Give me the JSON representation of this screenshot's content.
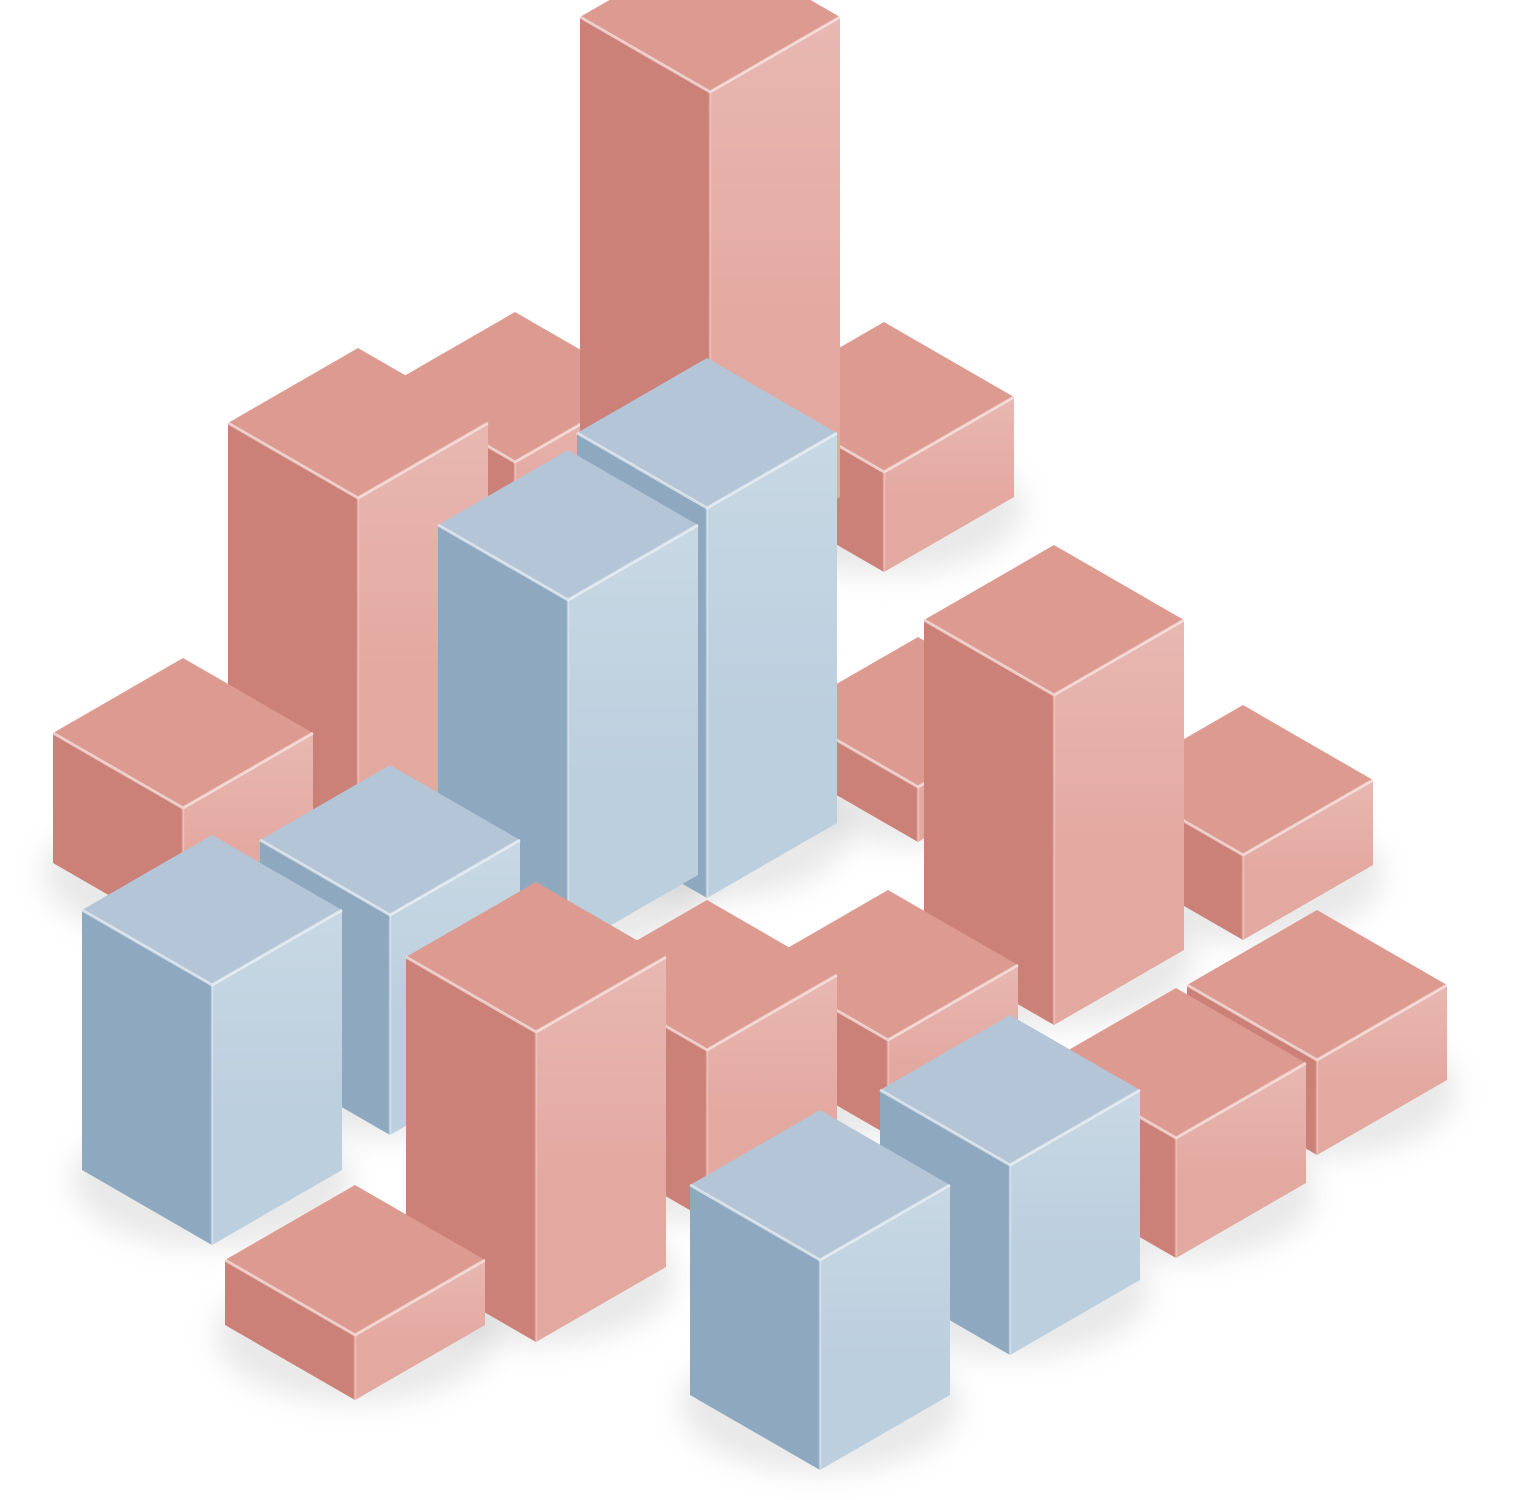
{
  "scene": {
    "subject": "3d-isometric-bar-blocks",
    "colors": {
      "red": {
        "top": "#dd9a90",
        "left": "#cb8178",
        "right": "#e3a8a0",
        "edge": "#f4cfc9"
      },
      "blue": {
        "top": "#b3c5d6",
        "left": "#8ea8c0",
        "right": "#bccfde",
        "edge": "#e6eef5"
      },
      "background": "#ffffff"
    },
    "blocks": [
      {
        "color": "red",
        "height": 1.0
      },
      {
        "color": "red",
        "height": 1.0
      },
      {
        "color": "red",
        "height": 0.55
      },
      {
        "color": "red",
        "height": 3.6
      },
      {
        "color": "red",
        "height": 1.3
      },
      {
        "color": "red",
        "height": 4.8
      },
      {
        "color": "red",
        "height": 0.85
      },
      {
        "color": "blue",
        "height": 3.9
      },
      {
        "color": "blue",
        "height": 3.5
      },
      {
        "color": "blue",
        "height": 2.2
      },
      {
        "color": "red",
        "height": 3.3
      },
      {
        "color": "red",
        "height": 0.95
      },
      {
        "color": "red",
        "height": 0.95
      },
      {
        "color": "red",
        "height": 1.7
      },
      {
        "color": "blue",
        "height": 2.6
      },
      {
        "color": "red",
        "height": 3.1
      },
      {
        "color": "red",
        "height": 1.2
      },
      {
        "color": "blue",
        "height": 1.9
      },
      {
        "color": "blue",
        "height": 0.95
      },
      {
        "color": "red",
        "height": 0.65
      },
      {
        "color": "blue",
        "height": 2.1
      },
      {
        "color": "blue",
        "height": 1.1
      }
    ]
  }
}
